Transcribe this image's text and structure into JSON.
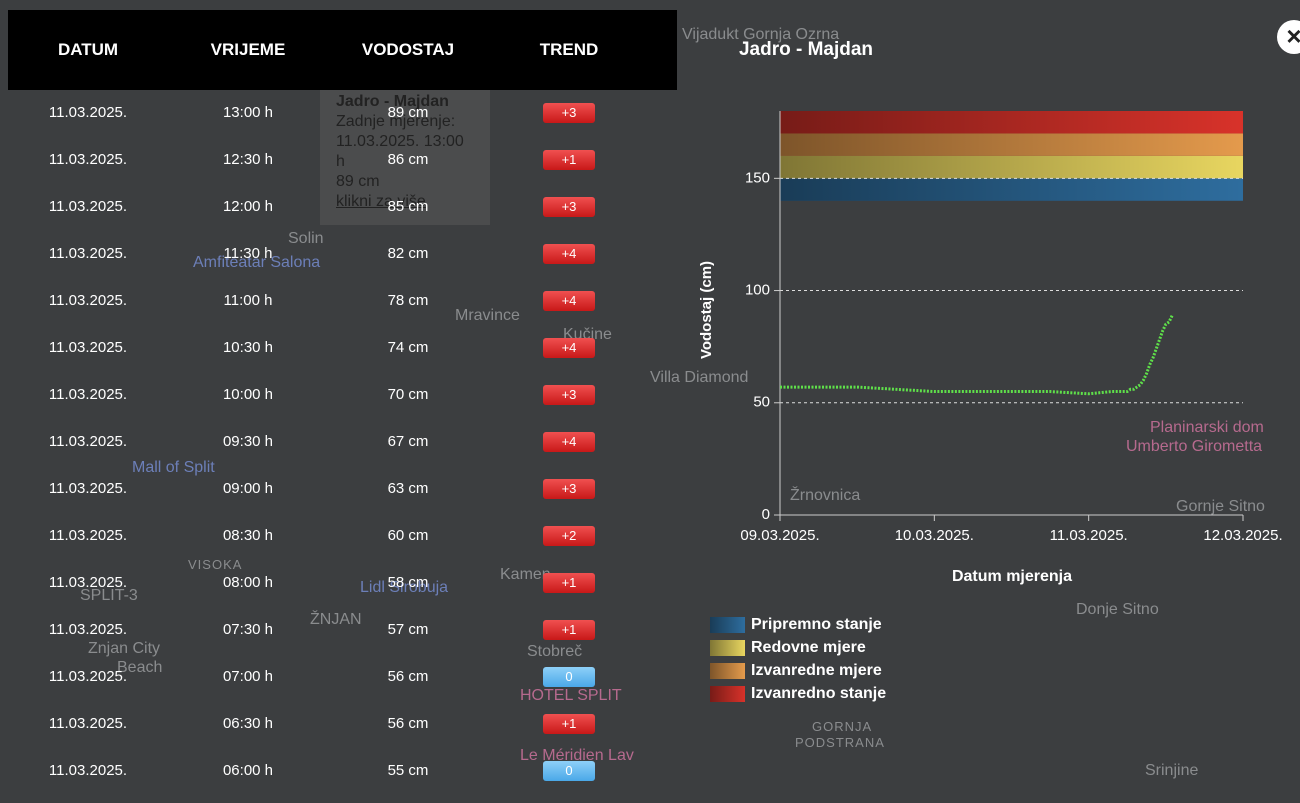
{
  "table": {
    "headers": [
      "DATUM",
      "VRIJEME",
      "VODOSTAJ",
      "TREND"
    ],
    "rows": [
      [
        "11.03.2025.",
        "13:00 h",
        "89 cm",
        "+3"
      ],
      [
        "11.03.2025.",
        "12:30 h",
        "86 cm",
        "+1"
      ],
      [
        "11.03.2025.",
        "12:00 h",
        "85 cm",
        "+3"
      ],
      [
        "11.03.2025.",
        "11:30 h",
        "82 cm",
        "+4"
      ],
      [
        "11.03.2025.",
        "11:00 h",
        "78 cm",
        "+4"
      ],
      [
        "11.03.2025.",
        "10:30 h",
        "74 cm",
        "+4"
      ],
      [
        "11.03.2025.",
        "10:00 h",
        "70 cm",
        "+3"
      ],
      [
        "11.03.2025.",
        "09:30 h",
        "67 cm",
        "+4"
      ],
      [
        "11.03.2025.",
        "09:00 h",
        "63 cm",
        "+3"
      ],
      [
        "11.03.2025.",
        "08:30 h",
        "60 cm",
        "+2"
      ],
      [
        "11.03.2025.",
        "08:00 h",
        "58 cm",
        "+1"
      ],
      [
        "11.03.2025.",
        "07:30 h",
        "57 cm",
        "+1"
      ],
      [
        "11.03.2025.",
        "07:00 h",
        "56 cm",
        "0"
      ],
      [
        "11.03.2025.",
        "06:30 h",
        "56 cm",
        "+1"
      ],
      [
        "11.03.2025.",
        "06:00 h",
        "55 cm",
        "0"
      ]
    ]
  },
  "popup": {
    "title": "Jadro - Majdan",
    "lines": [
      "Zadnje mjerenje:",
      "11.03.2025. 13:00 h",
      "89 cm"
    ],
    "link": "klikni za više"
  },
  "map": {
    "labels": [
      "Vijadukt Gornja Ozrna",
      "Solin",
      "Amfiteatar Salona",
      "Mravince",
      "Kučine",
      "Villa Diamond",
      "Planinarski dom",
      "Umberto Girometta",
      "Mall of Split",
      "VISOKA",
      "SPLIT-3",
      "ŽNJAN",
      "Znjan City",
      "Beach",
      "Stobreč",
      "HOTEL SPLIT",
      "Le Méridien Lav",
      "GORNJA",
      "PODSTRANA",
      "Donje Sitno",
      "Gornje Sitno",
      "Srinjine",
      "Kamen",
      "Lidl Sirobuja",
      "Žrnovnica"
    ]
  },
  "chart_data": {
    "type": "line",
    "title": "Jadro - Majdan",
    "xlabel": "Datum mjerenja",
    "ylabel": "Vodostaj (cm)",
    "xlim": [
      0,
      3
    ],
    "xticks": [
      {
        "value": 0,
        "label": "09.03.2025."
      },
      {
        "value": 1,
        "label": "10.03.2025."
      },
      {
        "value": 2,
        "label": "11.03.2025."
      },
      {
        "value": 3,
        "label": "12.03.2025."
      }
    ],
    "ylim": [
      0,
      180
    ],
    "yticks": [
      0,
      50,
      100,
      150
    ],
    "grid": true,
    "bands": [
      {
        "name": "Pripremno stanje",
        "color": "#2e6d9e",
        "from": 140,
        "to": 150
      },
      {
        "name": "Redovne mjere",
        "color": "#e8d660",
        "from": 150,
        "to": 160
      },
      {
        "name": "Izvanredne mjere",
        "color": "#e49a4c",
        "from": 160,
        "to": 170
      },
      {
        "name": "Izvanredno stanje",
        "color": "#d8322a",
        "from": 170,
        "to": 180
      }
    ],
    "series": [
      {
        "name": "Vodostaj",
        "color": "#5fe04a",
        "x": [
          0,
          0.25,
          0.5,
          0.75,
          1,
          1.25,
          1.5,
          1.75,
          2,
          2.15,
          2.25,
          2.2708,
          2.2917,
          2.3125,
          2.3333,
          2.3542,
          2.375,
          2.3958,
          2.4167,
          2.4375,
          2.4583,
          2.4792,
          2.5,
          2.5208,
          2.5417
        ],
        "values": [
          57,
          57,
          57,
          56,
          55,
          55,
          55,
          55,
          54,
          55,
          55,
          56,
          56,
          57,
          58,
          60,
          63,
          67,
          70,
          74,
          78,
          82,
          85,
          86,
          89
        ]
      }
    ]
  }
}
